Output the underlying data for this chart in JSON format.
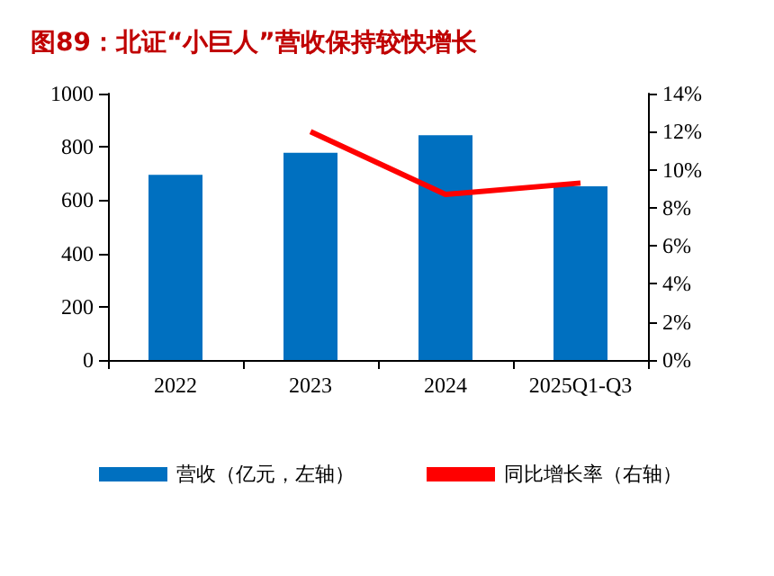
{
  "chart_data": {
    "type": "bar",
    "title": "图89：北证“小巨人”营收保持较快增长",
    "categories": [
      "2022",
      "2023",
      "2024",
      "2025Q1-Q3"
    ],
    "series": [
      {
        "name": "营收（亿元，左轴）",
        "color": "#0070c0",
        "values": [
          695,
          778,
          844,
          652
        ]
      },
      {
        "name": "同比增长率（右轴）",
        "type": "line",
        "axis": "y2",
        "color": "#ff0000",
        "values": [
          null,
          12.0,
          8.7,
          9.3
        ]
      }
    ],
    "ylim": [
      0,
      1000
    ],
    "yticks": [
      0,
      200,
      400,
      600,
      800,
      1000
    ],
    "y2lim": [
      0,
      14
    ],
    "y2ticks": [
      {
        "value": 0,
        "label": "0%"
      },
      {
        "value": 2,
        "label": "2%"
      },
      {
        "value": 4,
        "label": "4%"
      },
      {
        "value": 6,
        "label": "6%"
      },
      {
        "value": 8,
        "label": "8%"
      },
      {
        "value": 10,
        "label": "10%"
      },
      {
        "value": 12,
        "label": "12%"
      },
      {
        "value": 14,
        "label": "14%"
      }
    ],
    "grid": false,
    "legend": "bottom",
    "marker": "none"
  }
}
